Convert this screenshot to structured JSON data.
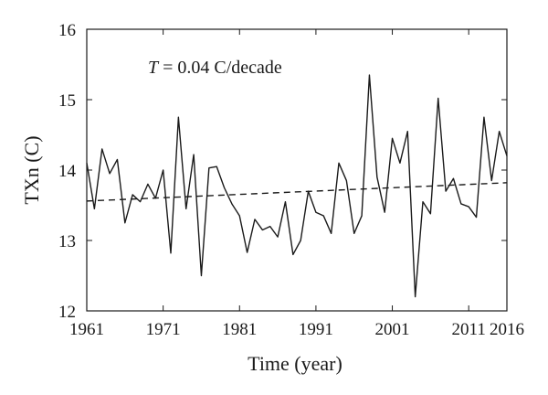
{
  "chart_data": {
    "type": "line",
    "xlabel": "Time (year)",
    "ylabel": "TXn (C)",
    "annotation": {
      "symbol": "T",
      "text": " = 0.04 C/decade"
    },
    "xlim": [
      1961,
      2016
    ],
    "ylim": [
      12,
      16
    ],
    "x_ticks": [
      1961,
      1971,
      1981,
      1991,
      2001,
      2011,
      2016
    ],
    "x_tick_labels": [
      "1961",
      "1971",
      "1981",
      "1991",
      "2001",
      "2011",
      "2016"
    ],
    "y_ticks": [
      12,
      13,
      14,
      15,
      16
    ],
    "y_tick_labels": [
      "12",
      "13",
      "14",
      "15",
      "16"
    ],
    "grid": false,
    "series": [
      {
        "style": "solid",
        "color": "#1a1a1a",
        "x": [
          1961,
          1962,
          1963,
          1964,
          1965,
          1966,
          1967,
          1968,
          1969,
          1970,
          1971,
          1972,
          1973,
          1974,
          1975,
          1976,
          1977,
          1978,
          1979,
          1980,
          1981,
          1982,
          1983,
          1984,
          1985,
          1986,
          1987,
          1988,
          1989,
          1990,
          1991,
          1992,
          1993,
          1994,
          1995,
          1996,
          1997,
          1998,
          1999,
          2000,
          2001,
          2002,
          2003,
          2004,
          2005,
          2006,
          2007,
          2008,
          2009,
          2010,
          2011,
          2012,
          2013,
          2014,
          2015,
          2016
        ],
        "y": [
          14.1,
          13.45,
          14.3,
          13.95,
          14.15,
          13.25,
          13.65,
          13.55,
          13.8,
          13.6,
          14.0,
          12.82,
          14.75,
          13.45,
          14.22,
          12.5,
          14.03,
          14.05,
          13.75,
          13.52,
          13.35,
          12.83,
          13.3,
          13.15,
          13.2,
          13.05,
          13.55,
          12.8,
          13.0,
          13.7,
          13.4,
          13.35,
          13.1,
          14.1,
          13.85,
          13.1,
          13.35,
          15.35,
          13.9,
          13.4,
          14.45,
          14.1,
          14.55,
          12.2,
          13.55,
          13.38,
          15.02,
          13.7,
          13.88,
          13.52,
          13.48,
          13.33,
          14.75,
          13.85,
          14.55,
          14.2
        ]
      },
      {
        "style": "dashed",
        "color": "#1a1a1a",
        "x": [
          1961,
          2016
        ],
        "y": [
          13.56,
          13.82
        ]
      }
    ]
  }
}
